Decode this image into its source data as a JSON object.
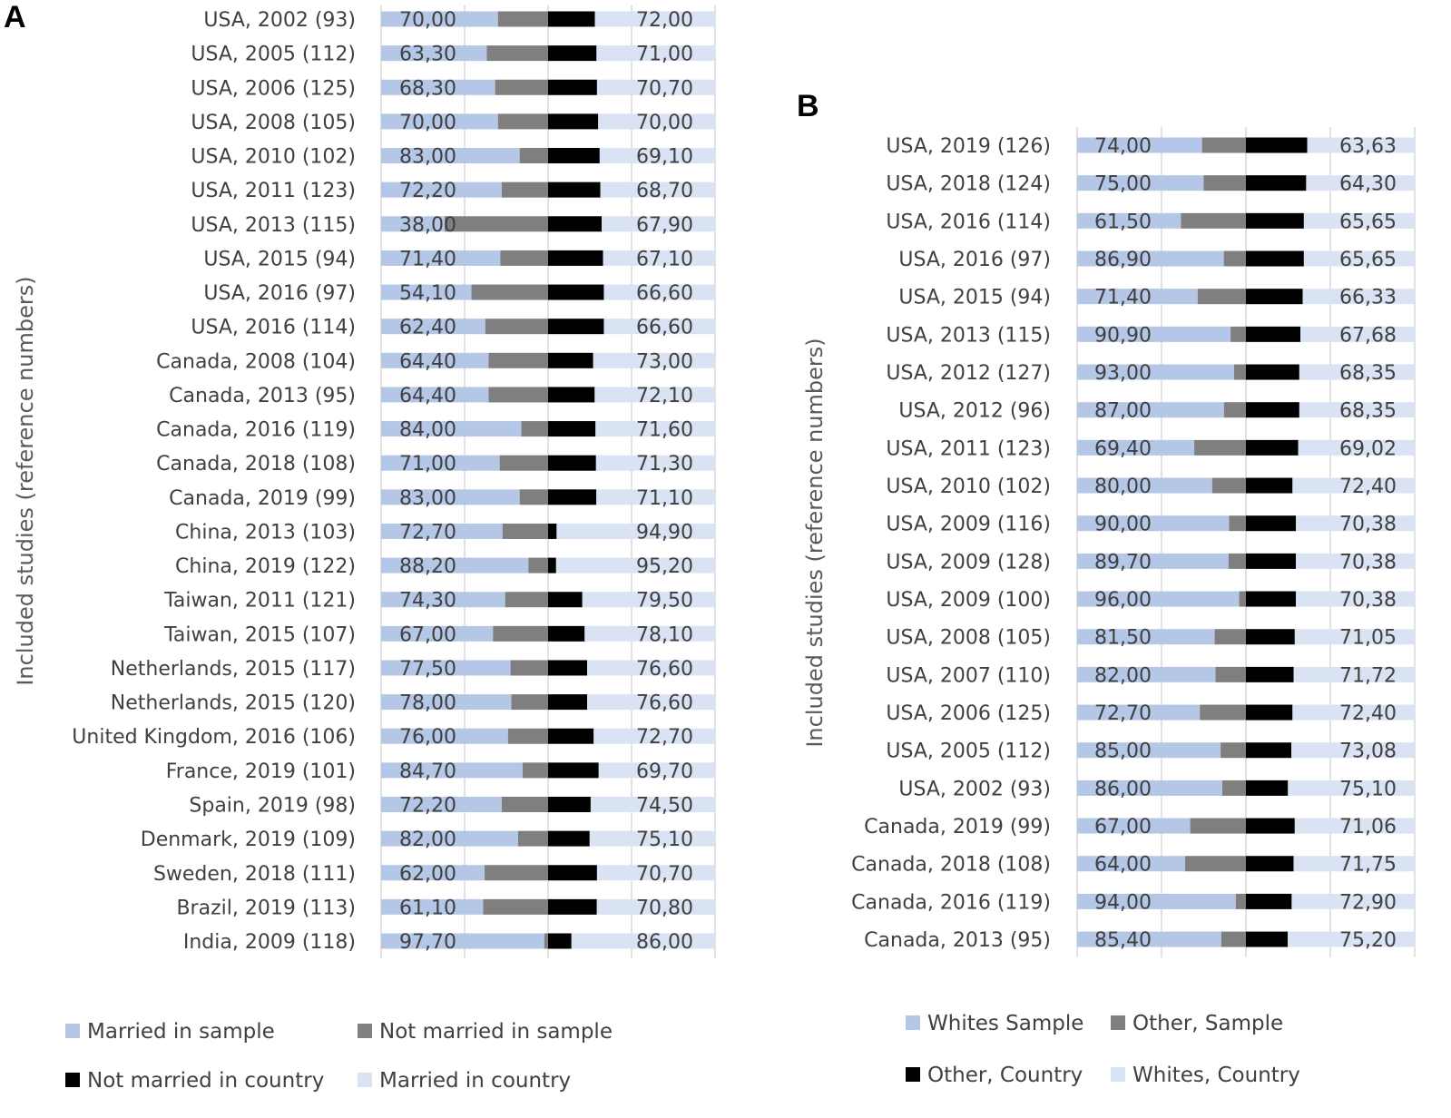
{
  "chart_data": [
    {
      "type": "bar",
      "panel": "A",
      "ylabel": "Included studies (reference numbers)",
      "categories": [
        "USA, 2002 (93)",
        "USA, 2005 (112)",
        "USA, 2006 (125)",
        "USA, 2008 (105)",
        "USA, 2010 (102)",
        "USA, 2011 (123)",
        "USA, 2013 (115)",
        "USA, 2015 (94)",
        "USA, 2016 (97)",
        "USA, 2016 (114)",
        "Canada, 2008 (104)",
        "Canada, 2013 (95)",
        "Canada, 2016 (119)",
        "Canada, 2018 (108)",
        "Canada, 2019 (99)",
        "China, 2013 (103)",
        "China, 2019 (122)",
        "Taiwan, 2011 (121)",
        "Taiwan, 2015 (107)",
        "Netherlands, 2015 (117)",
        "Netherlands, 2015 (120)",
        "United Kingdom, 2016 (106)",
        "France, 2019 (101)",
        "Spain, 2019 (98)",
        "Denmark, 2019 (109)",
        "Sweden, 2018 (111)",
        "Brazil, 2019 (113)",
        "India, 2009 (118)"
      ],
      "sample_labels": [
        "70,00",
        "63,30",
        "68,30",
        "70,00",
        "83,00",
        "72,20",
        "38,00",
        "71,40",
        "54,10",
        "62,40",
        "64,40",
        "64,40",
        "84,00",
        "71,00",
        "83,00",
        "72,70",
        "88,20",
        "74,30",
        "67,00",
        "77,50",
        "78,00",
        "76,00",
        "84,70",
        "72,20",
        "82,00",
        "62,00",
        "61,10",
        "97,70"
      ],
      "country_labels": [
        "72,00",
        "71,00",
        "70,70",
        "70,00",
        "69,10",
        "68,70",
        "67,90",
        "67,10",
        "66,60",
        "66,60",
        "73,00",
        "72,10",
        "71,60",
        "71,30",
        "71,10",
        "94,90",
        "95,20",
        "79,50",
        "78,10",
        "76,60",
        "76,60",
        "72,70",
        "69,70",
        "74,50",
        "75,10",
        "70,70",
        "70,80",
        "86,00"
      ],
      "series": [
        {
          "name": "Married in sample",
          "color": "#b4c7e7"
        },
        {
          "name": "Not married in sample",
          "color": "#7f7f7f"
        },
        {
          "name": "Not married in country",
          "color": "#000000"
        },
        {
          "name": "Married in country",
          "color": "#dae3f3"
        }
      ],
      "legend_position": "bottom"
    },
    {
      "type": "bar",
      "panel": "B",
      "ylabel": "Included studies (reference numbers)",
      "categories": [
        "USA, 2019 (126)",
        "USA, 2018 (124)",
        "USA, 2016 (114)",
        "USA, 2016 (97)",
        "USA, 2015 (94)",
        "USA, 2013 (115)",
        "USA, 2012 (127)",
        "USA, 2012 (96)",
        "USA, 2011 (123)",
        "USA, 2010 (102)",
        "USA, 2009 (116)",
        "USA, 2009 (128)",
        "USA, 2009 (100)",
        "USA, 2008 (105)",
        "USA, 2007 (110)",
        "USA, 2006 (125)",
        "USA, 2005 (112)",
        "USA, 2002 (93)",
        "Canada, 2019 (99)",
        "Canada, 2018 (108)",
        "Canada, 2016 (119)",
        "Canada, 2013 (95)"
      ],
      "sample_labels": [
        "74,00",
        "75,00",
        "61,50",
        "86,90",
        "71,40",
        "90,90",
        "93,00",
        "87,00",
        "69,40",
        "80,00",
        "90,00",
        "89,70",
        "96,00",
        "81,50",
        "82,00",
        "72,70",
        "85,00",
        "86,00",
        "67,00",
        "64,00",
        "94,00",
        "85,40"
      ],
      "country_labels": [
        "63,63",
        "64,30",
        "65,65",
        "65,65",
        "66,33",
        "67,68",
        "68,35",
        "68,35",
        "69,02",
        "72,40",
        "70,38",
        "70,38",
        "70,38",
        "71,05",
        "71,72",
        "72,40",
        "73,08",
        "75,10",
        "71,06",
        "71,75",
        "72,90",
        "75,20"
      ],
      "series": [
        {
          "name": "Whites Sample",
          "color": "#b4c7e7"
        },
        {
          "name": "Other, Sample",
          "color": "#7f7f7f"
        },
        {
          "name": "Other, Country",
          "color": "#000000"
        },
        {
          "name": "Whites, Country",
          "color": "#dae3f3"
        }
      ],
      "legend_position": "bottom"
    }
  ],
  "panel_letters": [
    "A",
    "B"
  ]
}
